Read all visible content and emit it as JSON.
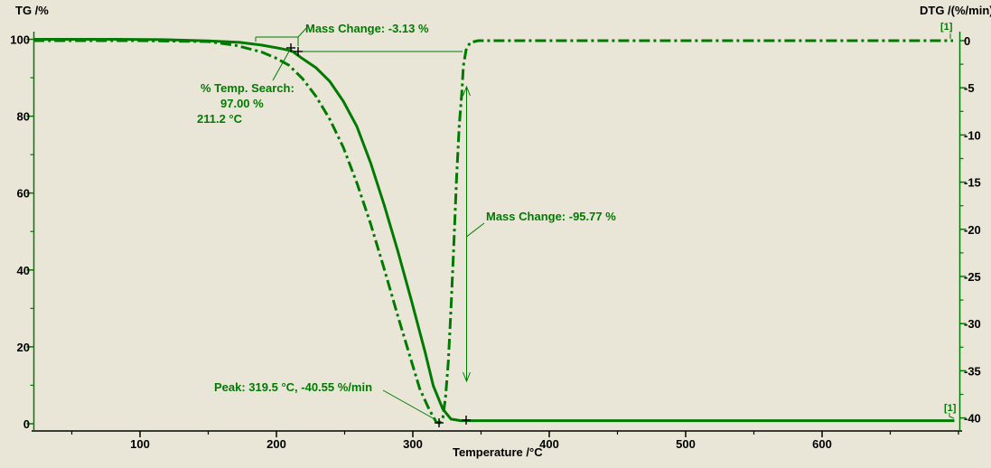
{
  "labels": {
    "left_axis_title": "TG /%",
    "right_axis_title": "DTG /(%/min)",
    "x_axis_title": "Temperature /°C",
    "curve_id_top": "[1]",
    "curve_id_bottom": "[1]"
  },
  "annotations": {
    "mass_change_1": "Mass Change: -3.13 %",
    "temp_search_line1": "% Temp. Search:",
    "temp_search_line2": "97.00 %",
    "temp_search_line3": "211.2 °C",
    "mass_change_2": "Mass Change: -95.77 %",
    "peak": "Peak: 319.5 °C, -40.55 %/min"
  },
  "chart_data": {
    "type": "line",
    "title": "",
    "xlabel": "Temperature /°C",
    "xlim": [
      21.9,
      701.3
    ],
    "x_major_ticks": [
      100,
      200,
      300,
      400,
      500,
      600
    ],
    "x_minor_step": 50,
    "grid": false,
    "axes": {
      "tg": {
        "label": "TG /%",
        "lim": [
          0,
          100
        ],
        "major_ticks": [
          0,
          20,
          40,
          60,
          80,
          100
        ],
        "minor_step": 10,
        "side": "left"
      },
      "dtg": {
        "label": "DTG /(%/min)",
        "lim": [
          -40.55,
          0
        ],
        "major_ticks": [
          0,
          -5,
          -10,
          -15,
          -20,
          -25,
          -30,
          -35,
          -40
        ],
        "minor_step": 2.5,
        "side": "right"
      }
    },
    "measurements": {
      "mass_change_1_percent": -3.13,
      "mass_change_2_percent": -95.77,
      "temp_search": {
        "percent": 97.0,
        "temp_C": 211.2
      },
      "dtg_peak": {
        "temp_C": 319.5,
        "rate_percent_per_min": -40.55
      }
    },
    "series": [
      {
        "name": "TG",
        "curve_id": "[1]",
        "axis": "tg",
        "style": "solid",
        "points": [
          [
            22,
            100
          ],
          [
            77,
            100
          ],
          [
            117,
            99.9
          ],
          [
            150,
            99.6
          ],
          [
            173,
            99.2
          ],
          [
            189,
            98.5
          ],
          [
            203,
            97.6
          ],
          [
            211.2,
            97.0
          ],
          [
            219,
            95.0
          ],
          [
            229,
            92.6
          ],
          [
            239,
            89.1
          ],
          [
            249,
            83.9
          ],
          [
            259,
            77.3
          ],
          [
            269,
            67.9
          ],
          [
            279,
            56.9
          ],
          [
            289,
            44.9
          ],
          [
            299,
            32.0
          ],
          [
            309,
            18.6
          ],
          [
            315,
            9.9
          ],
          [
            322,
            3.8
          ],
          [
            328,
            1.2
          ],
          [
            335,
            0.8
          ],
          [
            355,
            0.8
          ],
          [
            697,
            0.8
          ]
        ]
      },
      {
        "name": "DTG",
        "curve_id": "[1]",
        "axis": "dtg",
        "style": "dashdot",
        "points": [
          [
            22,
            0
          ],
          [
            97,
            0
          ],
          [
            150,
            -0.1
          ],
          [
            170,
            -0.5
          ],
          [
            189,
            -1.2
          ],
          [
            199,
            -1.8
          ],
          [
            209,
            -2.6
          ],
          [
            219,
            -4.0
          ],
          [
            229,
            -5.9
          ],
          [
            239,
            -8.3
          ],
          [
            249,
            -11.3
          ],
          [
            259,
            -15.1
          ],
          [
            269,
            -19.4
          ],
          [
            279,
            -24.2
          ],
          [
            289,
            -29.2
          ],
          [
            299,
            -34.0
          ],
          [
            305,
            -36.9
          ],
          [
            312,
            -39.1
          ],
          [
            317,
            -40.4
          ],
          [
            319.5,
            -40.55
          ],
          [
            322,
            -40.0
          ],
          [
            324,
            -37.8
          ],
          [
            326,
            -34.0
          ],
          [
            328,
            -28.3
          ],
          [
            330,
            -21.8
          ],
          [
            332,
            -14.8
          ],
          [
            334,
            -9.1
          ],
          [
            336,
            -5.3
          ],
          [
            337,
            -2.7
          ],
          [
            339,
            -1.0
          ],
          [
            342,
            -0.2
          ],
          [
            348,
            0
          ],
          [
            696,
            0
          ]
        ]
      }
    ],
    "colors": {
      "curve_green": "#007a00",
      "background": "#e9e6d8",
      "axis_black": "#000000"
    }
  }
}
